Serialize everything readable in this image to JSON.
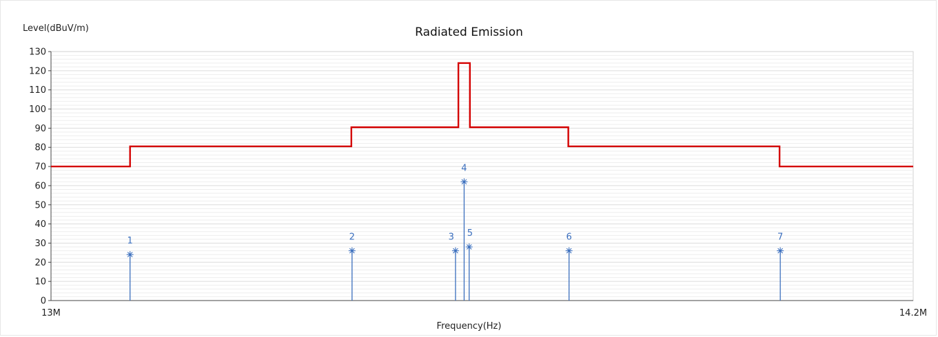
{
  "chart_data": {
    "type": "line",
    "title": "Radiated Emission",
    "ylabel": "Level(dBuV/m)",
    "xlabel": "Frequency(Hz)",
    "xlim": [
      13.0,
      14.2
    ],
    "ylim": [
      0,
      130
    ],
    "x_unit": "MHz",
    "x_tick_labels": [
      "13M",
      "14.2M"
    ],
    "y_ticks": [
      0,
      10,
      20,
      30,
      40,
      50,
      60,
      70,
      80,
      90,
      100,
      110,
      120,
      130
    ],
    "grid": true,
    "limit_line": {
      "color": "#d40000",
      "points": [
        [
          13.0,
          70
        ],
        [
          13.11,
          70
        ],
        [
          13.11,
          80.5
        ],
        [
          13.418,
          80.5
        ],
        [
          13.418,
          90.5
        ],
        [
          13.567,
          90.5
        ],
        [
          13.567,
          124
        ],
        [
          13.583,
          124
        ],
        [
          13.583,
          90.5
        ],
        [
          13.72,
          90.5
        ],
        [
          13.72,
          80.5
        ],
        [
          14.014,
          80.5
        ],
        [
          14.014,
          70
        ],
        [
          14.2,
          70
        ]
      ]
    },
    "markers": {
      "color": "#3a6ebd",
      "points": [
        {
          "label": "1",
          "x": 13.11,
          "y": 24
        },
        {
          "label": "2",
          "x": 13.419,
          "y": 26
        },
        {
          "label": "3",
          "x": 13.563,
          "y": 26
        },
        {
          "label": "4",
          "x": 13.575,
          "y": 62
        },
        {
          "label": "5",
          "x": 13.582,
          "y": 28
        },
        {
          "label": "6",
          "x": 13.721,
          "y": 26
        },
        {
          "label": "7",
          "x": 14.015,
          "y": 26
        }
      ]
    }
  }
}
